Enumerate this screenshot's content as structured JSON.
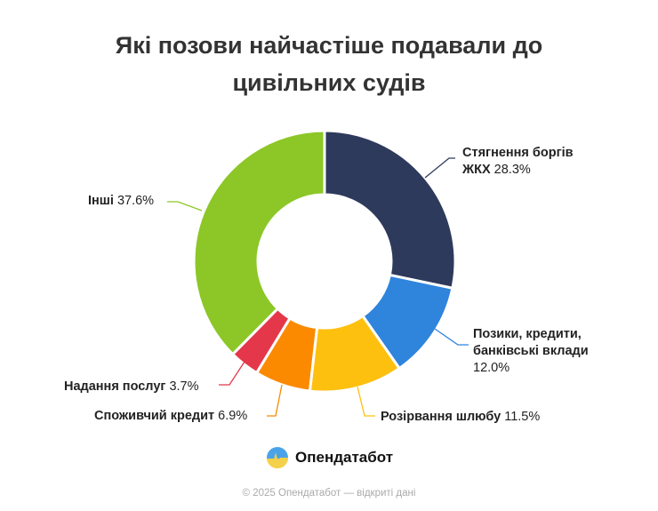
{
  "chart_data": {
    "type": "pie",
    "donut": true,
    "title": "Які позови найчастіше подавали до цивільних судів",
    "slices": [
      {
        "name": "Стягнення боргів ЖКХ",
        "value": 28.3,
        "label": "28.3%",
        "color": "#2e3a5c"
      },
      {
        "name": "Позики, кредити, банківські вклади",
        "value": 12.0,
        "label": "12.0%",
        "color": "#2f84dc"
      },
      {
        "name": "Розірвання шлюбу",
        "value": 11.5,
        "label": "11.5%",
        "color": "#fec00f"
      },
      {
        "name": "Споживчий кредит",
        "value": 6.9,
        "label": "6.9%",
        "color": "#fb8a00"
      },
      {
        "name": "Надання послуг",
        "value": 3.7,
        "label": "3.7%",
        "color": "#e5374a"
      },
      {
        "name": "Інші",
        "value": 37.6,
        "label": "37.6%",
        "color": "#8cc727"
      }
    ]
  },
  "title_line1": "Які позови найчастіше подавали до",
  "title_line2": "цивільних судів",
  "labels": {
    "s0_a": "Стягнення боргів",
    "s0_b": "ЖКХ",
    "s1_a": "Позики, кредити,",
    "s1_b": "банківські вклади",
    "s2": "Розірвання шлюбу",
    "s3": "Споживчий кредит",
    "s4": "Надання послуг",
    "s5": "Інші"
  },
  "brand": "Опендатабот",
  "footer": "© 2025 Опендатабот — відкриті дані"
}
